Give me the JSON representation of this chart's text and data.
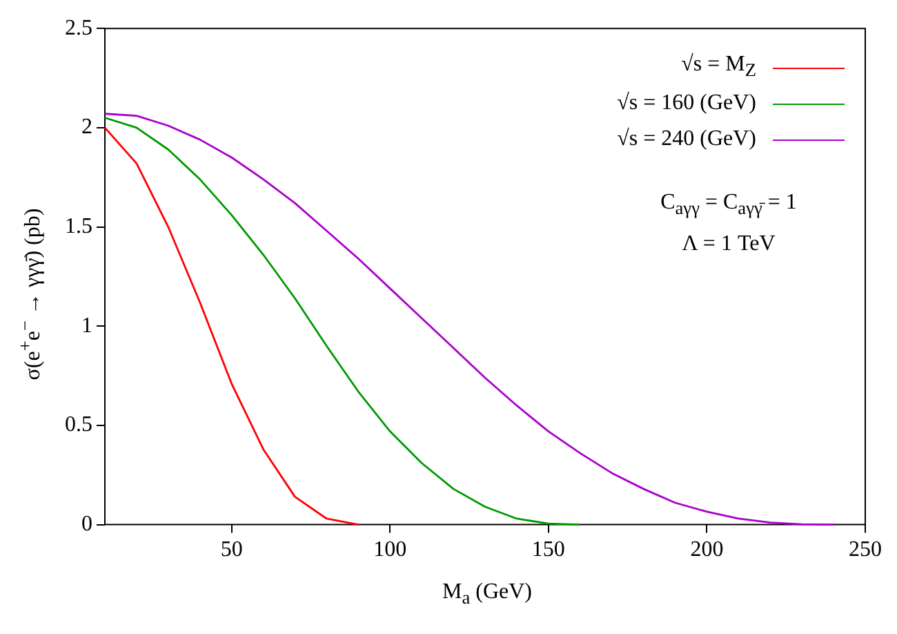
{
  "chart_data": {
    "type": "line",
    "xlabel": "M$_{a}$ (GeV)",
    "ylabel": "σ(e$^{+}$e$^{−}$ → γγγ̄) (pb)",
    "series": [
      {
        "name": "√s = M$_{Z}$",
        "color": "#ff0000",
        "x": [
          10,
          20,
          30,
          40,
          50,
          60,
          70,
          80,
          90
        ],
        "values": [
          2.0,
          1.82,
          1.5,
          1.12,
          0.71,
          0.38,
          0.14,
          0.03,
          0.0
        ]
      },
      {
        "name": "√s = 160 (GeV)",
        "color": "#009900",
        "x": [
          10,
          20,
          30,
          40,
          50,
          60,
          70,
          80,
          90,
          100,
          110,
          120,
          130,
          140,
          150,
          160
        ],
        "values": [
          2.05,
          2.0,
          1.89,
          1.74,
          1.56,
          1.36,
          1.14,
          0.9,
          0.67,
          0.47,
          0.31,
          0.18,
          0.09,
          0.03,
          0.005,
          0.0
        ]
      },
      {
        "name": "√s = 240 (GeV)",
        "color": "#aa00cc",
        "x": [
          10,
          20,
          30,
          40,
          50,
          60,
          70,
          80,
          90,
          100,
          110,
          120,
          130,
          140,
          150,
          160,
          170,
          180,
          190,
          200,
          210,
          220,
          230,
          240
        ],
        "values": [
          2.07,
          2.06,
          2.01,
          1.94,
          1.85,
          1.74,
          1.62,
          1.48,
          1.34,
          1.19,
          1.04,
          0.89,
          0.74,
          0.6,
          0.47,
          0.36,
          0.26,
          0.18,
          0.11,
          0.065,
          0.03,
          0.01,
          0.002,
          0.0
        ]
      }
    ],
    "xlim": [
      10,
      250
    ],
    "xticks": [
      50,
      100,
      150,
      200,
      250
    ],
    "ylim": [
      0,
      2.5
    ],
    "yticks": [
      0,
      0.5,
      1,
      1.5,
      2,
      2.5
    ],
    "grid": false,
    "legend": "top right",
    "marker": "none",
    "line_style": "solid",
    "annotations": [
      "C$_{aγγ}$ = C$_{aγγ̄}$ = 1",
      "Λ = 1 TeV"
    ]
  }
}
